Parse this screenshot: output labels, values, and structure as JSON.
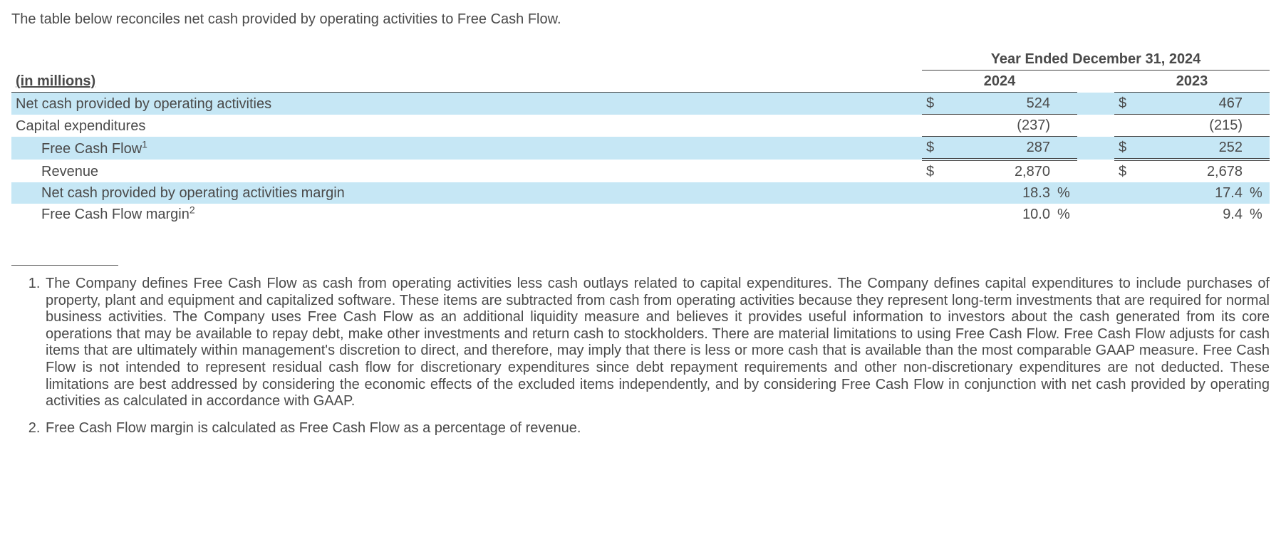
{
  "intro_text": "The table below reconciles net cash provided by operating activities to Free Cash Flow.",
  "table": {
    "units_label": "(in millions)",
    "period_header": "Year Ended December 31, 2024",
    "years": [
      "2024",
      "2023"
    ],
    "row_highlight_color": "#c6e7f5",
    "rows": [
      {
        "label": "Net cash provided by operating activities",
        "indent": 0,
        "shaded": true,
        "currency": "$",
        "values": [
          "524",
          "467"
        ],
        "border_top": false,
        "border_bottom_style": "single"
      },
      {
        "label": "Capital expenditures",
        "indent": 0,
        "shaded": false,
        "currency": "",
        "values": [
          "(237)",
          "(215)"
        ],
        "border_top": false,
        "border_bottom_style": "none"
      },
      {
        "label": "Free Cash Flow",
        "footnote_ref": "1",
        "indent": 1,
        "shaded": true,
        "currency": "$",
        "values": [
          "287",
          "252"
        ],
        "border_top": true,
        "border_bottom_style": "double"
      },
      {
        "label": "Revenue",
        "indent": 1,
        "shaded": false,
        "currency": "$",
        "values": [
          "2,870",
          "2,678"
        ],
        "border_top": false,
        "border_bottom_style": "none"
      },
      {
        "label": "Net cash provided by operating activities margin",
        "indent": 1,
        "shaded": true,
        "currency": "",
        "values": [
          "18.3",
          "17.4"
        ],
        "suffix": "%",
        "border_top": false,
        "border_bottom_style": "none"
      },
      {
        "label": "Free Cash Flow margin",
        "footnote_ref": "2",
        "indent": 1,
        "shaded": false,
        "currency": "",
        "values": [
          "10.0",
          "9.4"
        ],
        "suffix": "%",
        "border_top": false,
        "border_bottom_style": "none"
      }
    ]
  },
  "footnotes": [
    "The Company defines Free Cash Flow as cash from operating activities less cash outlays related to capital expenditures. The Company defines capital expenditures to include purchases of property, plant and equipment and capitalized software. These items are subtracted from cash from operating activities because they represent long-term investments that are required for normal business activities. The Company uses Free Cash Flow as an additional liquidity measure and believes it provides useful information to investors about the cash generated from its core operations that may be available to repay debt, make other investments and return cash to stockholders. There are material limitations to using Free Cash Flow. Free Cash Flow adjusts for cash items that are ultimately within management's discretion to direct, and therefore, may imply that there is less or more cash that is available than the most comparable GAAP measure. Free Cash Flow is not intended to represent residual cash flow for discretionary expenditures since debt repayment requirements and other non-discretionary expenditures are not deducted. These limitations are best addressed by considering the economic effects of the excluded items independently, and by considering Free Cash Flow in conjunction with net cash provided by operating activities as calculated in accordance with GAAP.",
    "Free Cash Flow margin is calculated as Free Cash Flow as a percentage of revenue."
  ]
}
